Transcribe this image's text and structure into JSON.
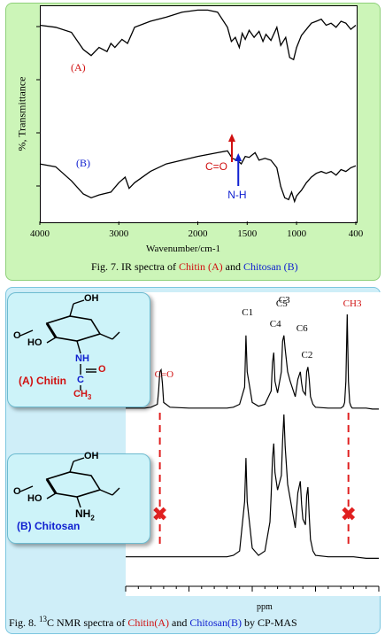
{
  "chart_data": [
    {
      "type": "line",
      "title": "",
      "xlabel": "Wavenumber/cm-1",
      "ylabel": "%, Transmittance",
      "xlim": [
        4000,
        400
      ],
      "x_ticks": [
        4000,
        3000,
        2000,
        1500,
        1000,
        400
      ],
      "series": [
        {
          "name": "(A)",
          "color": "#000000",
          "x": [
            4000,
            3800,
            3600,
            3450,
            3350,
            3250,
            3150,
            3100,
            3050,
            2960,
            2890,
            2800,
            2600,
            2400,
            2200,
            2000,
            1900,
            1800,
            1700,
            1660,
            1620,
            1580,
            1550,
            1520,
            1480,
            1430,
            1380,
            1340,
            1310,
            1260,
            1200,
            1160,
            1110,
            1070,
            1030,
            1000,
            950,
            900,
            850,
            800,
            750,
            700,
            650,
            600,
            550,
            500,
            450,
            400
          ],
          "y": [
            82,
            80,
            75,
            58,
            52,
            60,
            56,
            64,
            60,
            68,
            64,
            80,
            86,
            90,
            95,
            97,
            97,
            95,
            80,
            66,
            70,
            60,
            74,
            68,
            77,
            70,
            76,
            66,
            73,
            67,
            80,
            62,
            70,
            50,
            48,
            60,
            72,
            78,
            84,
            86,
            88,
            82,
            84,
            80,
            86,
            84,
            78,
            82
          ]
        },
        {
          "name": "(B)",
          "color": "#000000",
          "x": [
            4000,
            3800,
            3600,
            3450,
            3350,
            3250,
            3100,
            3000,
            2920,
            2870,
            2800,
            2600,
            2400,
            2200,
            2000,
            1900,
            1800,
            1700,
            1650,
            1600,
            1560,
            1520,
            1480,
            1420,
            1380,
            1320,
            1260,
            1200,
            1160,
            1120,
            1080,
            1050,
            1020,
            1000,
            950,
            900,
            850,
            800,
            750,
            700,
            650,
            600,
            550,
            500,
            450,
            400
          ],
          "y": [
            48,
            45,
            30,
            16,
            12,
            15,
            18,
            28,
            34,
            22,
            28,
            40,
            48,
            52,
            56,
            58,
            60,
            62,
            54,
            52,
            48,
            56,
            55,
            60,
            52,
            54,
            52,
            44,
            24,
            12,
            10,
            18,
            8,
            14,
            20,
            28,
            34,
            38,
            40,
            38,
            40,
            36,
            42,
            40,
            44,
            46
          ]
        }
      ],
      "annotations": [
        {
          "text": "C=O",
          "color": "#d01010",
          "x": 1655
        },
        {
          "text": "N-H",
          "color": "#1020d0",
          "x": 1590
        }
      ],
      "caption": {
        "fig": "Fig. 7. IR spectra of ",
        "a": "Chitin (A)",
        "and": " and ",
        "b": "Chitosan (B)"
      }
    },
    {
      "type": "line",
      "title": "",
      "xlabel": "ppm",
      "xlim": [
        200,
        0
      ],
      "series": [
        {
          "name": "Chitin(A)",
          "color": "#000000",
          "x": [
            200,
            185,
            180,
            175,
            174,
            173,
            172,
            171,
            170,
            165,
            150,
            130,
            120,
            115,
            110,
            106,
            105,
            104,
            100,
            95,
            90,
            85,
            84,
            83,
            82,
            80,
            77,
            76,
            75,
            74,
            72,
            70,
            66,
            64,
            62,
            61,
            60,
            58,
            57,
            56,
            55,
            54,
            52,
            50,
            40,
            30,
            28,
            27,
            26,
            25,
            24,
            23,
            22,
            21,
            20,
            15,
            10,
            5,
            0
          ],
          "y": [
            2,
            2,
            3,
            6,
            20,
            40,
            42,
            28,
            8,
            3,
            2,
            2,
            2,
            3,
            6,
            24,
            78,
            40,
            8,
            4,
            6,
            20,
            50,
            60,
            30,
            18,
            40,
            72,
            78,
            64,
            40,
            30,
            14,
            32,
            40,
            28,
            20,
            16,
            40,
            45,
            32,
            14,
            6,
            3,
            2,
            2,
            4,
            8,
            30,
            100,
            30,
            8,
            4,
            2,
            2,
            2,
            2,
            1,
            1
          ]
        },
        {
          "name": "Chitosan(B)",
          "color": "#000000",
          "x": [
            200,
            180,
            175,
            170,
            150,
            130,
            120,
            115,
            110,
            106,
            105,
            104,
            100,
            95,
            90,
            86,
            85,
            84,
            83,
            82,
            80,
            77,
            76,
            75,
            74,
            72,
            70,
            66,
            64,
            62,
            61,
            60,
            58,
            57,
            56,
            55,
            54,
            52,
            50,
            40,
            30,
            25,
            20,
            10,
            0
          ],
          "y": [
            2,
            2,
            2,
            2,
            2,
            2,
            2,
            3,
            6,
            40,
            70,
            40,
            8,
            3,
            6,
            26,
            45,
            70,
            80,
            60,
            48,
            58,
            82,
            100,
            78,
            52,
            42,
            22,
            46,
            54,
            38,
            28,
            24,
            44,
            50,
            30,
            14,
            6,
            3,
            2,
            2,
            2,
            2,
            1,
            1
          ]
        }
      ],
      "peak_labels": [
        "C=O",
        "C1",
        "C4",
        "C5",
        "C3",
        "C2",
        "C6",
        "CH3"
      ],
      "annotations_x": [
        {
          "text": "✖",
          "color": "#e02020",
          "x": 173
        },
        {
          "text": "✖",
          "color": "#e02020",
          "x": 24
        }
      ],
      "caption": {
        "fig": "Fig. 8. ",
        "sup": "13",
        "c": "C NMR spectra of ",
        "a": "Chitin(A)",
        "and": " and ",
        "b": "Chitosan(B)",
        "end": " by CP-MAS"
      }
    }
  ],
  "structures": {
    "chitin_label": "(A) Chitin",
    "chitosan_label": "(B) Chitosan",
    "oh": "OH",
    "ho": "HO",
    "nh": "NH",
    "nh2": "NH",
    "two": "2",
    "c": "C",
    "o": "O",
    "ch3": "CH",
    "three": "3"
  }
}
